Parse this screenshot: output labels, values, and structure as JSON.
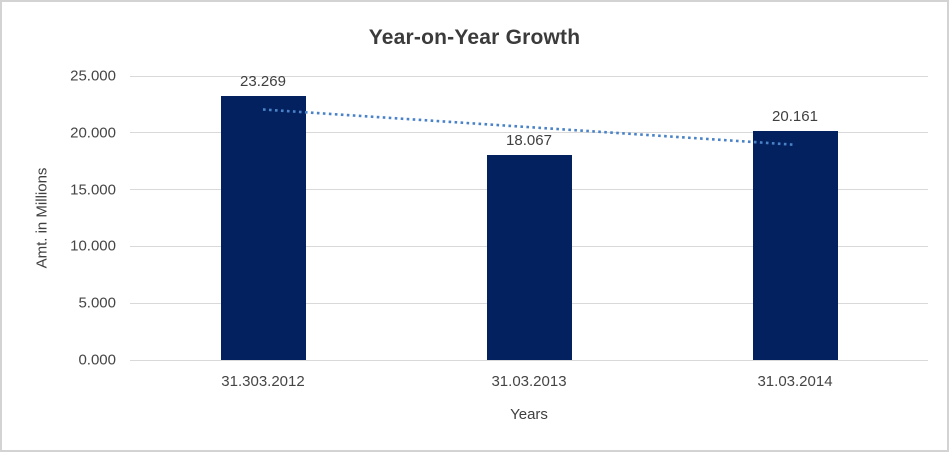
{
  "chart_data": {
    "type": "bar",
    "title": "Year-on-Year Growth",
    "xlabel": "Years",
    "ylabel": "Amt. in Millions",
    "categories": [
      "31.303.2012",
      "31.03.2013",
      "31.03.2014"
    ],
    "values": [
      23.269,
      18.067,
      20.161
    ],
    "data_labels": [
      "23.269",
      "18.067",
      "20.161"
    ],
    "y_ticks": [
      "0.000",
      "5.000",
      "10.000",
      "15.000",
      "20.000",
      "25.000"
    ],
    "ylim": [
      0,
      25
    ],
    "grid": true,
    "legend": "none",
    "trendline": {
      "type": "linear",
      "style": "dotted"
    },
    "colors": {
      "bar": "#04215f",
      "trendline": "#4a82c8",
      "gridline": "#d9d9d9",
      "title_text": "#3b3b3b",
      "axis_text": "#454545",
      "label_text": "#404040",
      "frame_border": "#d3d3d3"
    }
  }
}
